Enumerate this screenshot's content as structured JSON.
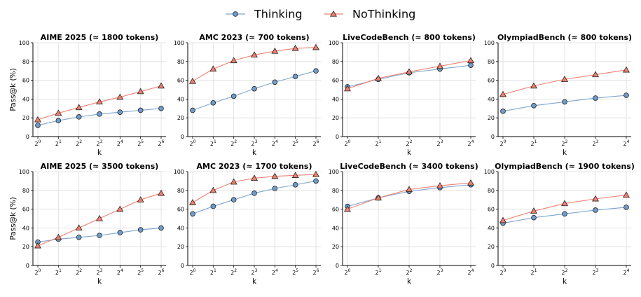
{
  "legend": [
    {
      "name": "Thinking",
      "color": "#1f77b4",
      "line_color": "#7fa6cc",
      "fill": "#6f9ccb",
      "marker": "circle"
    },
    {
      "name": "NoThinking",
      "color": "#d62728",
      "line_color": "#f08070",
      "fill": "#f07f6f",
      "marker": "triangle"
    }
  ],
  "legend_position": "top-center",
  "chart_data": [
    {
      "type": "line",
      "title": "AIME 2025 (≈ 1800 tokens)",
      "xlabel": "k",
      "ylabel": "Pass@k (%)",
      "x": [
        "2^0",
        "2^1",
        "2^2",
        "2^3",
        "2^4",
        "2^5",
        "2^6"
      ],
      "ylim": [
        0,
        100
      ],
      "yticks": [
        0,
        20,
        40,
        60,
        80,
        100
      ],
      "grid": true,
      "series": [
        {
          "name": "Thinking",
          "values": [
            12,
            17,
            21,
            24,
            26,
            28,
            30
          ]
        },
        {
          "name": "NoThinking",
          "values": [
            18,
            25,
            31,
            37,
            42,
            48,
            54
          ]
        }
      ]
    },
    {
      "type": "line",
      "title": "AMC 2023 (≈ 700 tokens)",
      "xlabel": "k",
      "ylabel": "",
      "x": [
        "2^0",
        "2^1",
        "2^2",
        "2^3",
        "2^4",
        "2^5",
        "2^6"
      ],
      "ylim": [
        0,
        100
      ],
      "yticks": [
        0,
        20,
        40,
        60,
        80,
        100
      ],
      "grid": true,
      "series": [
        {
          "name": "Thinking",
          "values": [
            28,
            36,
            43,
            51,
            58,
            64,
            70
          ]
        },
        {
          "name": "NoThinking",
          "values": [
            59,
            72,
            81,
            87,
            91,
            94,
            95
          ]
        }
      ]
    },
    {
      "type": "line",
      "title": "LiveCodeBench (≈ 800 tokens)",
      "xlabel": "k",
      "ylabel": "",
      "x": [
        "2^0",
        "2^1",
        "2^2",
        "2^3",
        "2^4"
      ],
      "ylim": [
        0,
        100
      ],
      "yticks": [
        0,
        20,
        40,
        60,
        80,
        100
      ],
      "grid": true,
      "series": [
        {
          "name": "Thinking",
          "values": [
            53,
            61,
            68,
            72,
            76
          ]
        },
        {
          "name": "NoThinking",
          "values": [
            51,
            62,
            69,
            75,
            81
          ]
        }
      ]
    },
    {
      "type": "line",
      "title": "OlympiadBench (≈ 800 tokens)",
      "xlabel": "k",
      "ylabel": "",
      "x": [
        "2^0",
        "2^1",
        "2^2",
        "2^3",
        "2^4"
      ],
      "ylim": [
        0,
        100
      ],
      "yticks": [
        0,
        20,
        40,
        60,
        80,
        100
      ],
      "grid": true,
      "series": [
        {
          "name": "Thinking",
          "values": [
            27,
            33,
            37,
            41,
            44
          ]
        },
        {
          "name": "NoThinking",
          "values": [
            45,
            54,
            61,
            66,
            71
          ]
        }
      ]
    },
    {
      "type": "line",
      "title": "AIME 2025 (≈ 3500 tokens)",
      "xlabel": "k",
      "ylabel": "Pass@k (%)",
      "x": [
        "2^0",
        "2^1",
        "2^2",
        "2^3",
        "2^4",
        "2^5",
        "2^6"
      ],
      "ylim": [
        0,
        100
      ],
      "yticks": [
        0,
        20,
        40,
        60,
        80,
        100
      ],
      "grid": true,
      "series": [
        {
          "name": "Thinking",
          "values": [
            25,
            28,
            30,
            32,
            35,
            38,
            40
          ]
        },
        {
          "name": "NoThinking",
          "values": [
            21,
            30,
            40,
            50,
            60,
            70,
            77
          ]
        }
      ]
    },
    {
      "type": "line",
      "title": "AMC 2023 (≈ 1700 tokens)",
      "xlabel": "k",
      "ylabel": "",
      "x": [
        "2^0",
        "2^1",
        "2^2",
        "2^3",
        "2^4",
        "2^5",
        "2^6"
      ],
      "ylim": [
        0,
        100
      ],
      "yticks": [
        0,
        20,
        40,
        60,
        80,
        100
      ],
      "grid": true,
      "series": [
        {
          "name": "Thinking",
          "values": [
            55,
            63,
            70,
            77,
            82,
            86,
            90
          ]
        },
        {
          "name": "NoThinking",
          "values": [
            67,
            80,
            89,
            93,
            95,
            96,
            97
          ]
        }
      ]
    },
    {
      "type": "line",
      "title": "LiveCodeBench (≈ 3400 tokens)",
      "xlabel": "k",
      "ylabel": "",
      "x": [
        "2^0",
        "2^1",
        "2^2",
        "2^3",
        "2^4"
      ],
      "ylim": [
        0,
        100
      ],
      "yticks": [
        0,
        20,
        40,
        60,
        80,
        100
      ],
      "grid": true,
      "series": [
        {
          "name": "Thinking",
          "values": [
            63,
            72,
            79,
            83,
            86
          ]
        },
        {
          "name": "NoThinking",
          "values": [
            60,
            72,
            81,
            85,
            88
          ]
        }
      ]
    },
    {
      "type": "line",
      "title": "OlympiadBench (≈ 1900 tokens)",
      "xlabel": "k",
      "ylabel": "",
      "x": [
        "2^0",
        "2^1",
        "2^2",
        "2^3",
        "2^4"
      ],
      "ylim": [
        0,
        100
      ],
      "yticks": [
        0,
        20,
        40,
        60,
        80,
        100
      ],
      "grid": true,
      "series": [
        {
          "name": "Thinking",
          "values": [
            45,
            51,
            55,
            59,
            62
          ]
        },
        {
          "name": "NoThinking",
          "values": [
            48,
            58,
            66,
            71,
            75
          ]
        }
      ]
    }
  ]
}
